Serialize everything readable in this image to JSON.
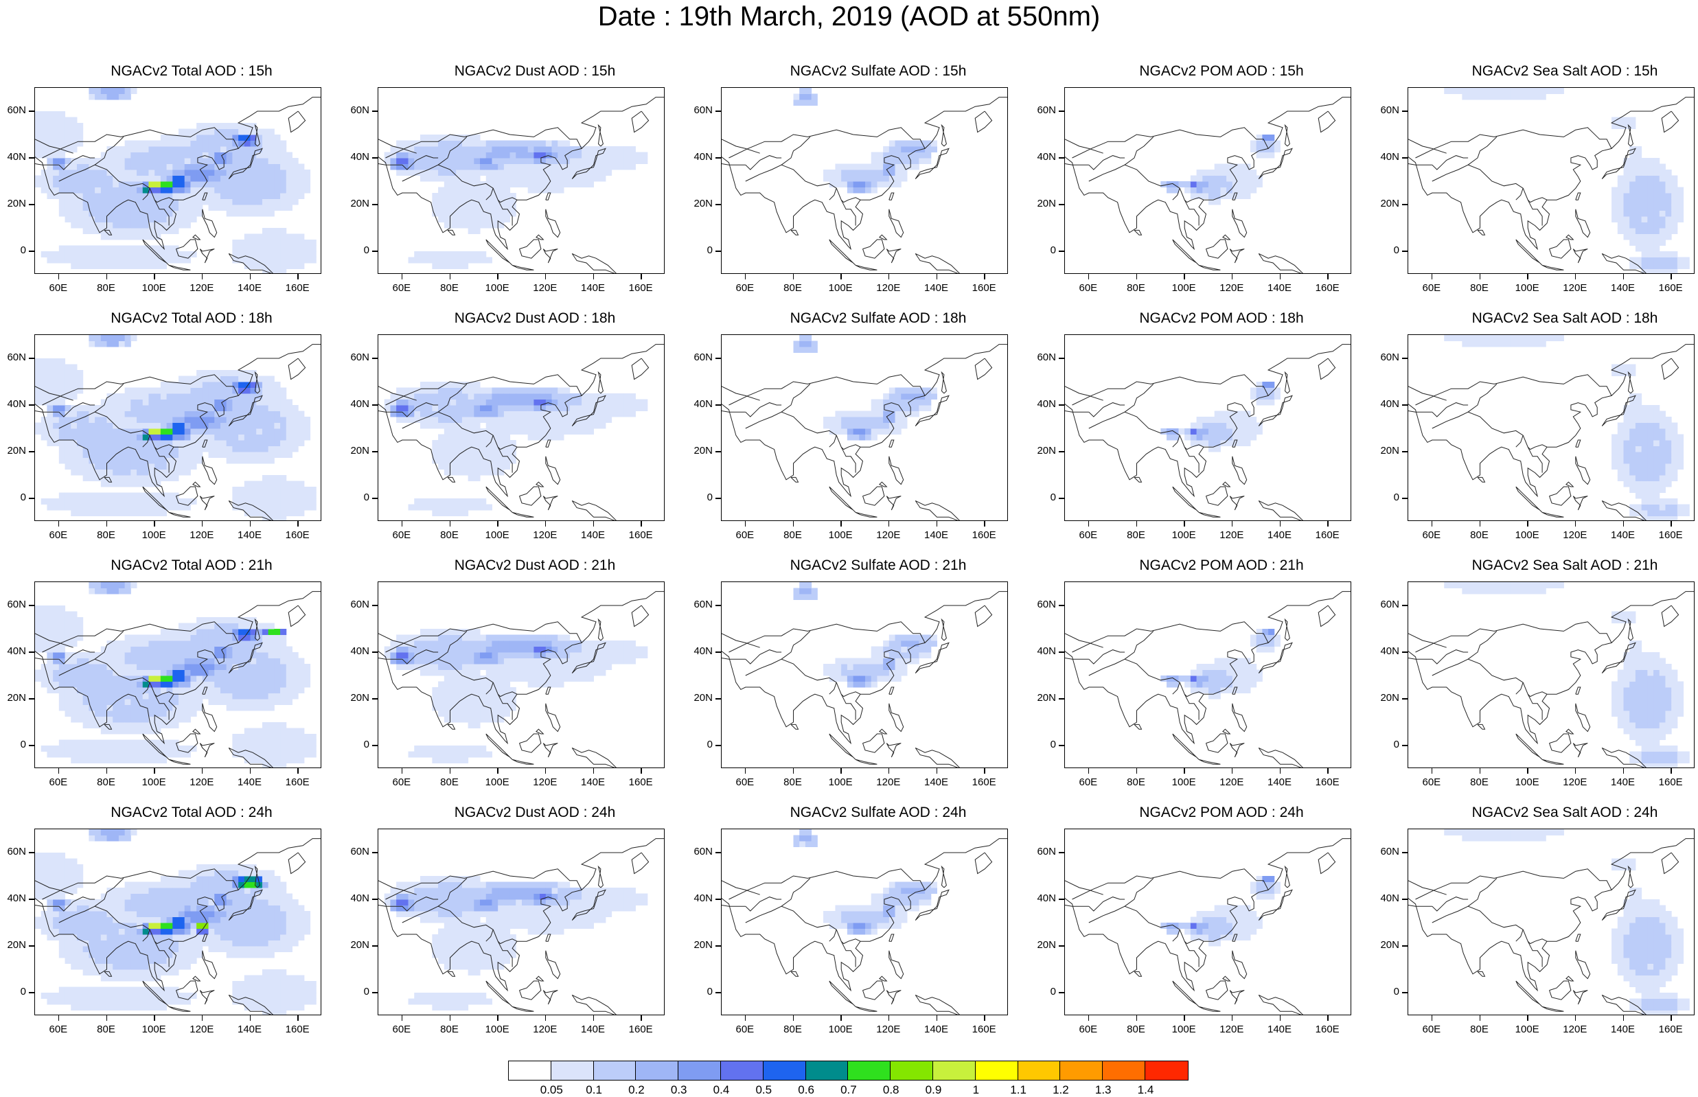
{
  "title": "Date : 19th March, 2019 (AOD at 550nm)",
  "panels": [
    [
      "NGACv2 Total AOD : 15h",
      "NGACv2 Dust AOD : 15h",
      "NGACv2 Sulfate AOD : 15h",
      "NGACv2 POM AOD : 15h",
      "NGACv2 Sea Salt AOD : 15h"
    ],
    [
      "NGACv2 Total AOD : 18h",
      "NGACv2 Dust AOD : 18h",
      "NGACv2 Sulfate AOD : 18h",
      "NGACv2 POM AOD : 18h",
      "NGACv2 Sea Salt AOD : 18h"
    ],
    [
      "NGACv2 Total AOD : 21h",
      "NGACv2 Dust AOD : 21h",
      "NGACv2 Sulfate AOD : 21h",
      "NGACv2 POM AOD : 21h",
      "NGACv2 Sea Salt AOD : 21h"
    ],
    [
      "NGACv2 Total AOD : 24h",
      "NGACv2 Dust AOD : 24h",
      "NGACv2 Sulfate AOD : 24h",
      "NGACv2 POM AOD : 24h",
      "NGACv2 Sea Salt  AOD : 24h"
    ]
  ],
  "lat_ticks": [
    "60N",
    "40N",
    "20N",
    "0"
  ],
  "lon_ticks": [
    "60E",
    "80E",
    "100E",
    "120E",
    "140E",
    "160E"
  ],
  "colorbar": {
    "labels": [
      "0.05",
      "0.1",
      "0.2",
      "0.3",
      "0.4",
      "0.5",
      "0.6",
      "0.7",
      "0.8",
      "0.9",
      "1",
      "1.1",
      "1.2",
      "1.3",
      "1.4"
    ],
    "colors": [
      "#ffffff",
      "#dbe4fb",
      "#bccdf9",
      "#9fb6f6",
      "#7f9cf2",
      "#6272ef",
      "#1e64ef",
      "#008c8c",
      "#2fe01e",
      "#84e600",
      "#c8f03c",
      "#ffff00",
      "#ffc800",
      "#ff9b00",
      "#ff6e00",
      "#ff2800"
    ]
  }
}
